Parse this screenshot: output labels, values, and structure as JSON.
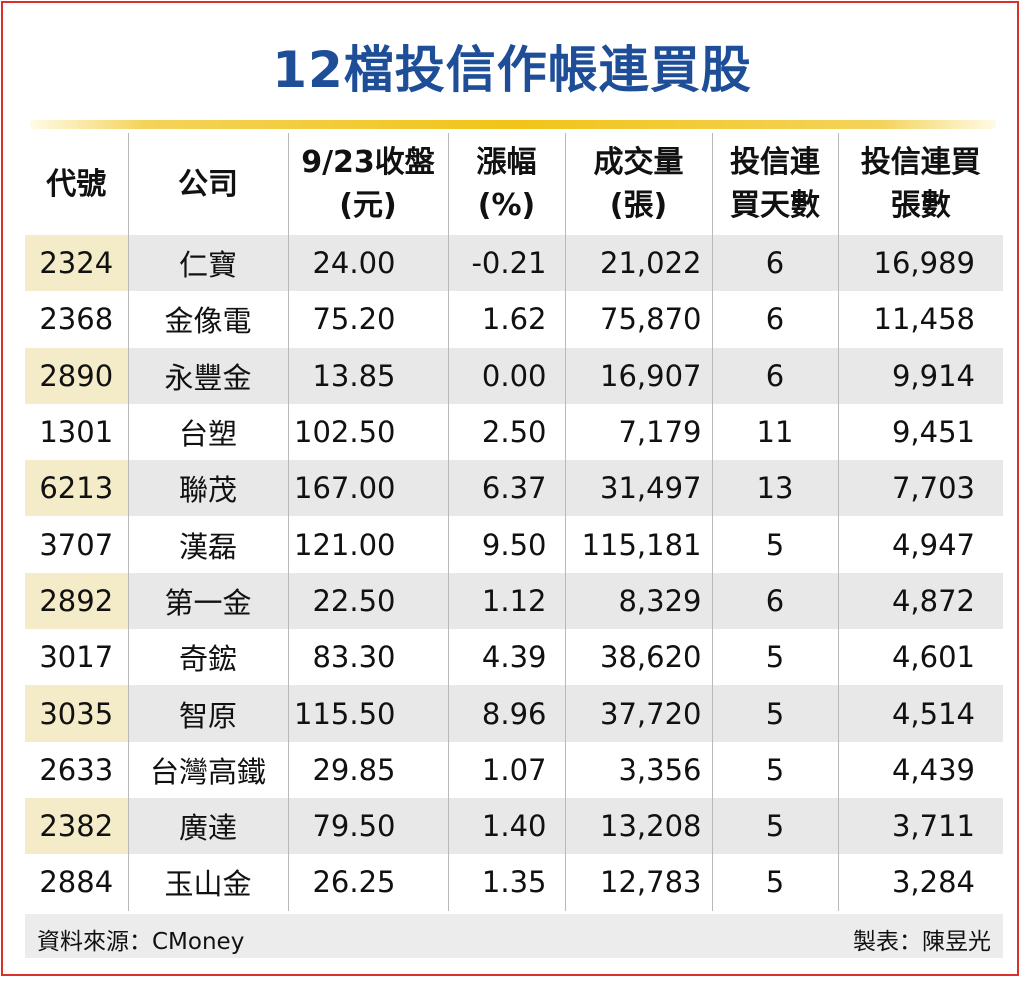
{
  "title": "12檔投信作帳連買股",
  "columns": [
    {
      "line1": "代號",
      "line2": ""
    },
    {
      "line1": "公司",
      "line2": ""
    },
    {
      "line1": "9/23收盤",
      "line2": "(元)"
    },
    {
      "line1": "漲幅",
      "line2": "(%)"
    },
    {
      "line1": "成交量",
      "line2": "(張)"
    },
    {
      "line1": "投信連",
      "line2": "買天數"
    },
    {
      "line1": "投信連買",
      "line2": "張數"
    }
  ],
  "rows": [
    {
      "code": "2324",
      "name": "仁寶",
      "close": "24.00",
      "change": "-0.21",
      "volume": "21,022",
      "days": "6",
      "shares": "16,989"
    },
    {
      "code": "2368",
      "name": "金像電",
      "close": "75.20",
      "change": "1.62",
      "volume": "75,870",
      "days": "6",
      "shares": "11,458"
    },
    {
      "code": "2890",
      "name": "永豐金",
      "close": "13.85",
      "change": "0.00",
      "volume": "16,907",
      "days": "6",
      "shares": "9,914"
    },
    {
      "code": "1301",
      "name": "台塑",
      "close": "102.50",
      "change": "2.50",
      "volume": "7,179",
      "days": "11",
      "shares": "9,451"
    },
    {
      "code": "6213",
      "name": "聯茂",
      "close": "167.00",
      "change": "6.37",
      "volume": "31,497",
      "days": "13",
      "shares": "7,703"
    },
    {
      "code": "3707",
      "name": "漢磊",
      "close": "121.00",
      "change": "9.50",
      "volume": "115,181",
      "days": "5",
      "shares": "4,947"
    },
    {
      "code": "2892",
      "name": "第一金",
      "close": "22.50",
      "change": "1.12",
      "volume": "8,329",
      "days": "6",
      "shares": "4,872"
    },
    {
      "code": "3017",
      "name": "奇鋐",
      "close": "83.30",
      "change": "4.39",
      "volume": "38,620",
      "days": "5",
      "shares": "4,601"
    },
    {
      "code": "3035",
      "name": "智原",
      "close": "115.50",
      "change": "8.96",
      "volume": "37,720",
      "days": "5",
      "shares": "4,514"
    },
    {
      "code": "2633",
      "name": "台灣高鐵",
      "close": "29.85",
      "change": "1.07",
      "volume": "3,356",
      "days": "5",
      "shares": "4,439"
    },
    {
      "code": "2382",
      "name": "廣達",
      "close": "79.50",
      "change": "1.40",
      "volume": "13,208",
      "days": "5",
      "shares": "3,711"
    },
    {
      "code": "2884",
      "name": "玉山金",
      "close": "26.25",
      "change": "1.35",
      "volume": "12,783",
      "days": "5",
      "shares": "3,284"
    }
  ],
  "footer": {
    "source": "資料來源：CMoney",
    "credit": "製表：陳昱光"
  },
  "colors": {
    "title": "#1f4e99",
    "border": "#d9302b",
    "rule": "#f0c419",
    "shade": "#e8e8e8",
    "shade_code": "#f4ecc9"
  }
}
